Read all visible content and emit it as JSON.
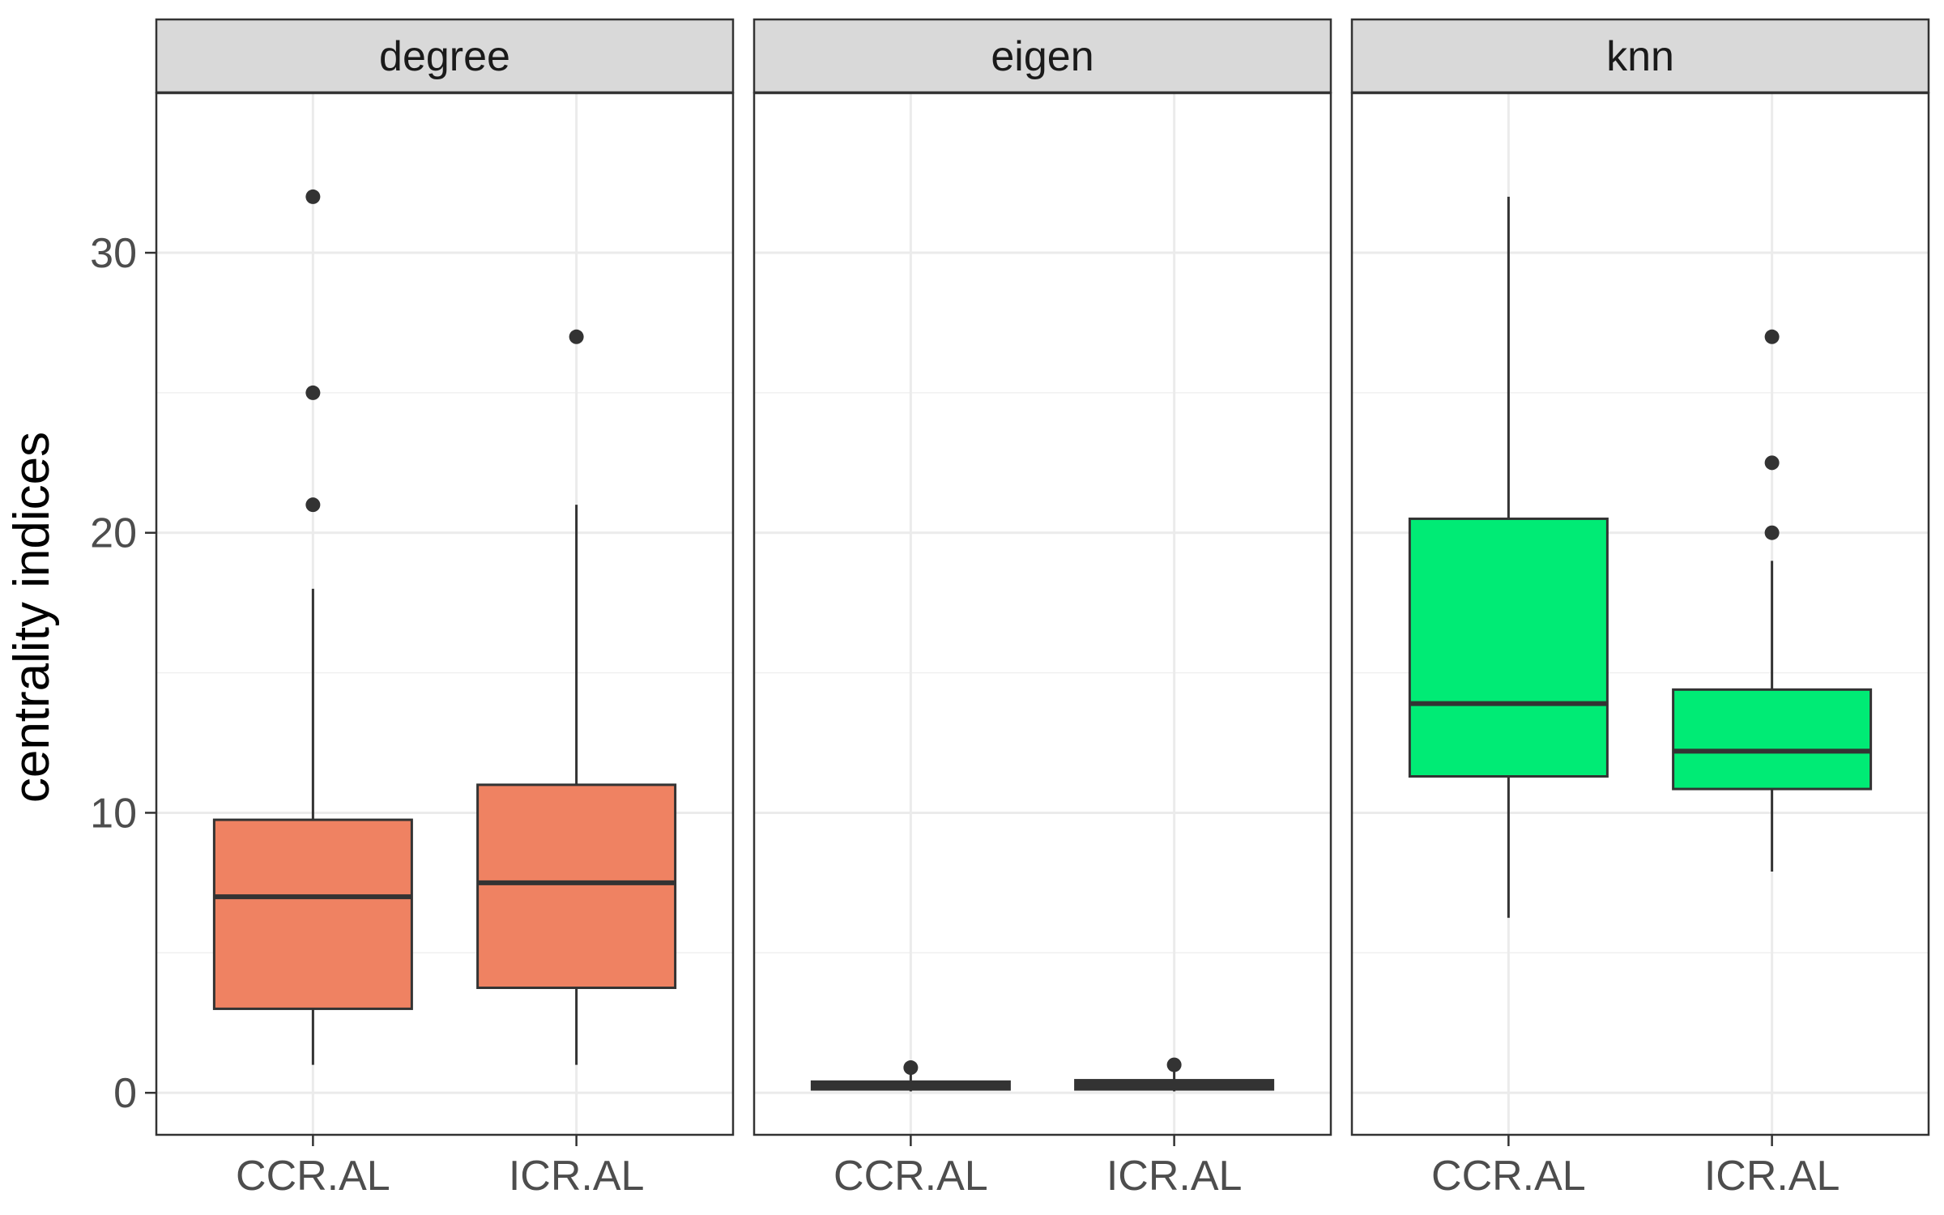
{
  "chart_data": {
    "type": "boxplot",
    "ylabel": "centrality indices",
    "ylim": [
      -1.5,
      35.7
    ],
    "yticks": [
      0,
      10,
      20,
      30
    ],
    "categories": [
      "CCR.AL",
      "ICR.AL"
    ],
    "grid": true,
    "facets": [
      {
        "name": "degree",
        "color": "#EF8262",
        "boxes": [
          {
            "category": "CCR.AL",
            "min": 1,
            "q1": 3,
            "median": 7,
            "q3": 9.75,
            "max": 18,
            "outliers": [
              21,
              25,
              32
            ]
          },
          {
            "category": "ICR.AL",
            "min": 1,
            "q1": 3.75,
            "median": 7.5,
            "q3": 11,
            "max": 21,
            "outliers": [
              27
            ]
          }
        ]
      },
      {
        "name": "eigen",
        "color": "#333333",
        "boxes": [
          {
            "category": "CCR.AL",
            "min": 0.05,
            "q1": 0.12,
            "median": 0.25,
            "q3": 0.4,
            "max": 0.75,
            "outliers": [
              0.9
            ]
          },
          {
            "category": "ICR.AL",
            "min": 0.05,
            "q1": 0.12,
            "median": 0.28,
            "q3": 0.45,
            "max": 0.85,
            "outliers": [
              1.0
            ]
          }
        ]
      },
      {
        "name": "knn",
        "color": "#00EB75",
        "boxes": [
          {
            "category": "CCR.AL",
            "min": 6.25,
            "q1": 11.3,
            "median": 13.9,
            "q3": 20.5,
            "max": 32,
            "outliers": []
          },
          {
            "category": "ICR.AL",
            "min": 7.9,
            "q1": 10.85,
            "median": 12.2,
            "q3": 14.4,
            "max": 19,
            "outliers": [
              20,
              22.5,
              27
            ]
          }
        ]
      }
    ]
  }
}
